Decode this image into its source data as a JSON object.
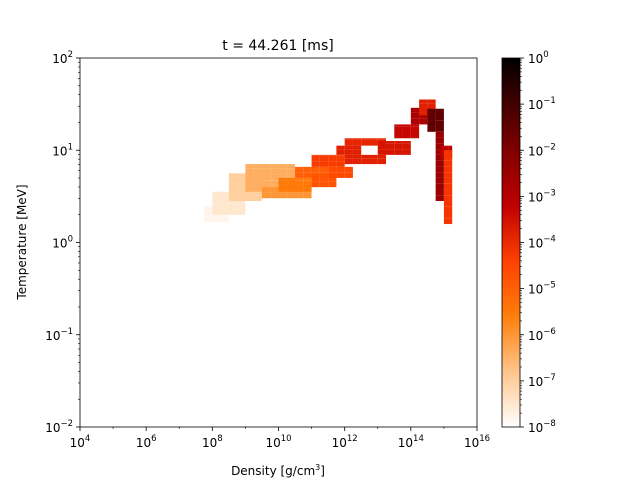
{
  "chart_data": {
    "type": "heatmap",
    "title": "t = 44.261 [ms]",
    "xlabel": "Density [g/cm",
    "xlabel_sup": "3",
    "xlabel_end": "]",
    "ylabel": "Temperature [MeV]",
    "x_scale": "log",
    "y_scale": "log",
    "xlim": [
      10000,
      1e+16
    ],
    "ylim": [
      0.01,
      100
    ],
    "x_ticks": [
      {
        "base": "10",
        "exp": "4"
      },
      {
        "base": "10",
        "exp": "6"
      },
      {
        "base": "10",
        "exp": "8"
      },
      {
        "base": "10",
        "exp": "10"
      },
      {
        "base": "10",
        "exp": "12"
      },
      {
        "base": "10",
        "exp": "14"
      },
      {
        "base": "10",
        "exp": "16"
      }
    ],
    "y_ticks": [
      {
        "base": "10",
        "exp": "−2"
      },
      {
        "base": "10",
        "exp": "−1"
      },
      {
        "base": "10",
        "exp": "0"
      },
      {
        "base": "10",
        "exp": "1"
      },
      {
        "base": "10",
        "exp": "2"
      }
    ],
    "colorbar": {
      "scale": "log",
      "range": [
        1e-08,
        1
      ],
      "colormap": "gist_heat_r",
      "ticks": [
        {
          "base": "10",
          "exp": "−8"
        },
        {
          "base": "10",
          "exp": "−7"
        },
        {
          "base": "10",
          "exp": "−6"
        },
        {
          "base": "10",
          "exp": "−5"
        },
        {
          "base": "10",
          "exp": "−4"
        },
        {
          "base": "10",
          "exp": "−3"
        },
        {
          "base": "10",
          "exp": "−2"
        },
        {
          "base": "10",
          "exp": "−1"
        },
        {
          "base": "10",
          "exp": "0"
        }
      ]
    },
    "bin_width_log_density": 0.25,
    "bin_height_log_temperature": 0.0625,
    "regions": [
      {
        "log_rho": [
          7.75,
          8.5
        ],
        "log_T": [
          0.22,
          0.4
        ],
        "log_value": -7.8
      },
      {
        "log_rho": [
          8.0,
          9.0
        ],
        "log_T": [
          0.3,
          0.55
        ],
        "log_value": -7.5
      },
      {
        "log_rho": [
          8.5,
          9.5
        ],
        "log_T": [
          0.45,
          0.75
        ],
        "log_value": -7.0
      },
      {
        "log_rho": [
          9.0,
          10.5
        ],
        "log_T": [
          0.55,
          0.85
        ],
        "log_value": -6.4
      },
      {
        "log_rho": [
          9.5,
          11.0
        ],
        "log_T": [
          0.48,
          0.6
        ],
        "log_value": -6.0
      },
      {
        "log_rho": [
          10.0,
          11.0
        ],
        "log_T": [
          0.55,
          0.7
        ],
        "log_value": -5.5
      },
      {
        "log_rho": [
          10.5,
          11.5
        ],
        "log_T": [
          0.7,
          0.82
        ],
        "log_value": -5.0
      },
      {
        "log_rho": [
          11.0,
          11.75
        ],
        "log_T": [
          0.6,
          0.75
        ],
        "log_value": -4.8
      },
      {
        "log_rho": [
          11.0,
          12.0
        ],
        "log_T": [
          0.82,
          0.95
        ],
        "log_value": -4.3
      },
      {
        "log_rho": [
          11.5,
          12.25
        ],
        "log_T": [
          0.7,
          0.82
        ],
        "log_value": -4.6
      },
      {
        "log_rho": [
          11.75,
          12.5
        ],
        "log_T": [
          0.95,
          1.05
        ],
        "log_value": -3.8
      },
      {
        "log_rho": [
          12.0,
          13.25
        ],
        "log_T": [
          0.85,
          0.95
        ],
        "log_value": -3.8
      },
      {
        "log_rho": [
          12.0,
          13.25
        ],
        "log_T": [
          1.05,
          1.13
        ],
        "log_value": -3.9
      },
      {
        "log_rho": [
          13.0,
          14.0
        ],
        "log_T": [
          0.95,
          1.1
        ],
        "log_value": -3.6
      },
      {
        "log_rho": [
          13.5,
          14.25
        ],
        "log_T": [
          1.13,
          1.28
        ],
        "log_value": -3.3
      },
      {
        "log_rho": [
          14.0,
          14.75
        ],
        "log_T": [
          1.28,
          1.46
        ],
        "log_value": -2.8
      },
      {
        "log_rho": [
          14.25,
          14.75
        ],
        "log_T": [
          1.38,
          1.55
        ],
        "log_value": -3.8
      },
      {
        "log_rho": [
          14.5,
          15.0
        ],
        "log_T": [
          1.2,
          1.45
        ],
        "log_value": -1.5
      },
      {
        "log_rho": [
          14.75,
          15.0
        ],
        "log_T": [
          0.45,
          1.2
        ],
        "log_value": -2.5
      },
      {
        "log_rho": [
          14.9,
          15.25
        ],
        "log_T": [
          0.92,
          1.05
        ],
        "log_value": -3.2
      },
      {
        "log_rho": [
          15.0,
          15.25
        ],
        "log_T": [
          0.2,
          1.0
        ],
        "log_value": -4.2
      }
    ]
  }
}
